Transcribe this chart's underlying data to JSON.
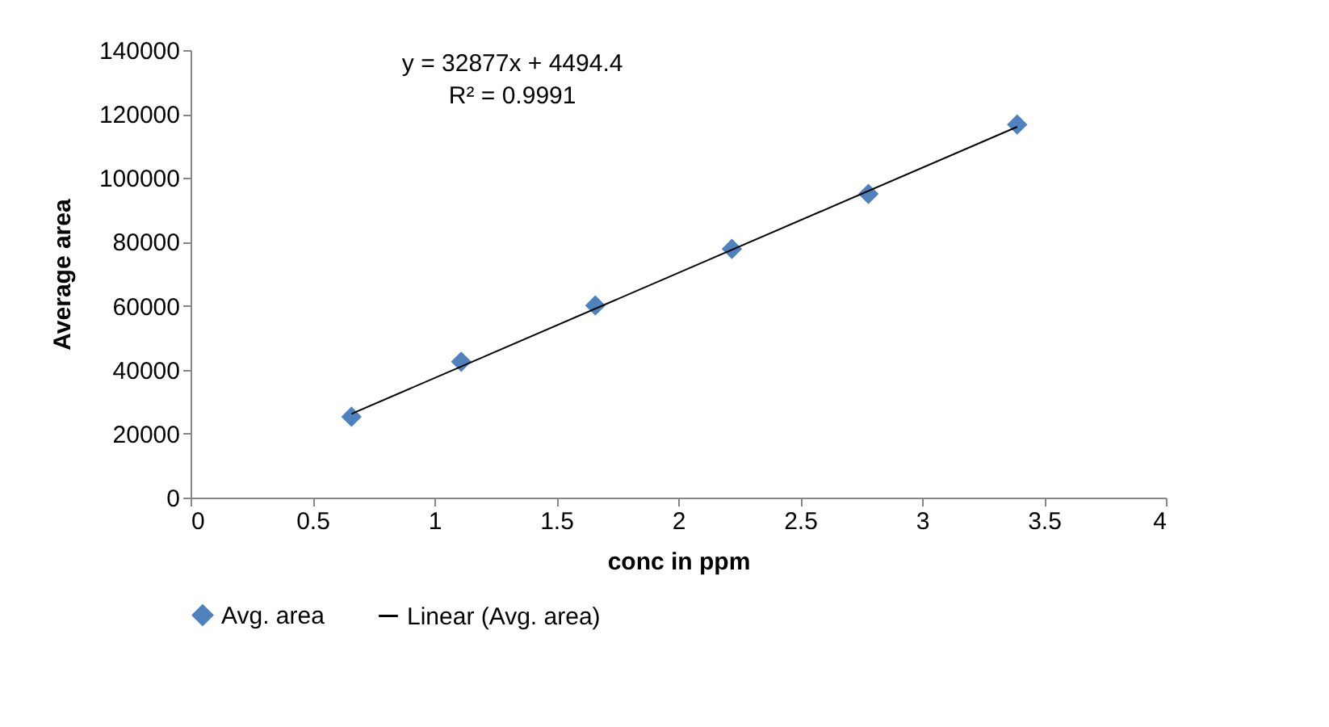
{
  "chart_data": {
    "type": "scatter",
    "xlabel": "conc in ppm",
    "ylabel": "Average area",
    "xlim": [
      0,
      4
    ],
    "xticks": [
      0,
      0.5,
      1,
      1.5,
      2,
      2.5,
      3,
      3.5,
      4
    ],
    "ylim": [
      0,
      140000
    ],
    "yticks": [
      0,
      20000,
      40000,
      60000,
      80000,
      100000,
      120000,
      140000
    ],
    "grid": false,
    "legend": "bottom",
    "annotations": [
      "y = 32877x + 4494.4",
      "R² = 0.9991"
    ],
    "series": [
      {
        "name": "Avg. area",
        "color": "#4f81bd",
        "marker": "diamond",
        "x": [
          0.66,
          1.11,
          1.66,
          2.22,
          2.78,
          3.39
        ],
        "values": [
          25300,
          42500,
          60100,
          77800,
          95000,
          116700
        ]
      },
      {
        "name": "Linear (Avg. area)",
        "type": "line",
        "color": "#000000",
        "marker": "none",
        "x": [
          0.66,
          3.39
        ],
        "values": [
          26200,
          116000
        ]
      }
    ]
  }
}
